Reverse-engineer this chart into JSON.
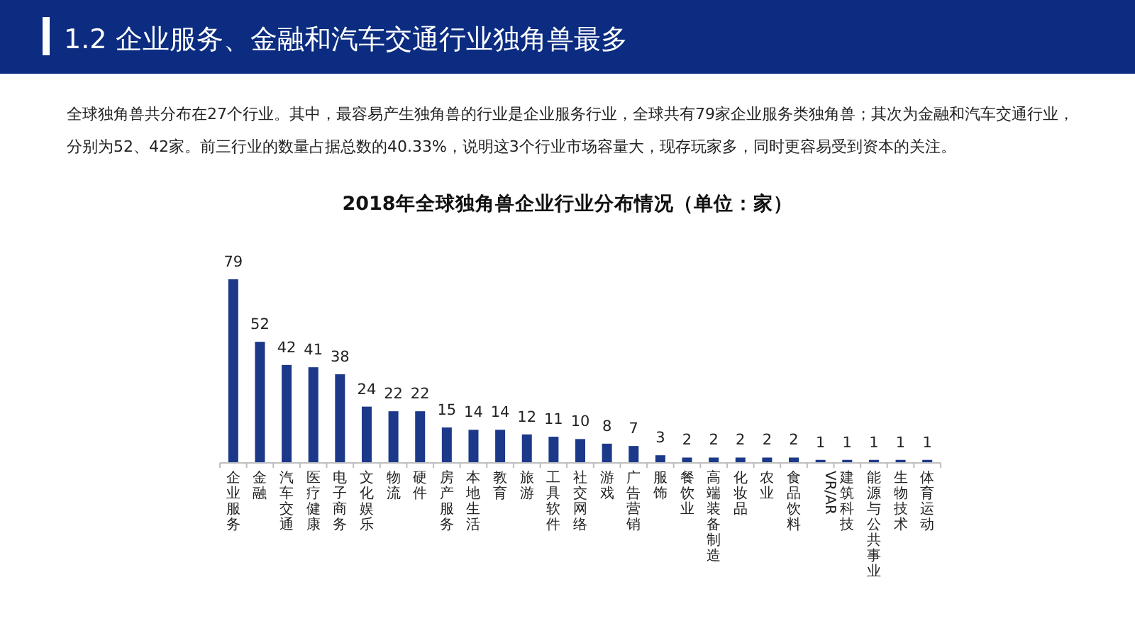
{
  "chart_data": {
    "type": "bar",
    "title": "2018年全球独角兽企业行业分布情况（单位：家）",
    "annotations": [
      "1.2 企业服务、金融和汽车交通行业独角兽最多",
      "全球独角兽共分布在27个行业。其中，最容易产生独角兽的行业是企业服务行业，全球共有79家企业服务类独角兽；其次为金融和汽车交通行业，分别为52、42家。前三行业的数量占据总数的40.33%，说明这3个行业市场容量大，现存玩家多，同时更容易受到资本的关注。"
    ],
    "categories": [
      "企业服务",
      "金融",
      "汽车交通",
      "医疗健康",
      "电子商务",
      "文化娱乐",
      "物流",
      "硬件",
      "房产服务",
      "本地生活",
      "教育",
      "旅游",
      "工具软件",
      "社交网络",
      "游戏",
      "广告营销",
      "服饰",
      "餐饮业",
      "高端装备制造",
      "化妆品",
      "农业",
      "食品饮料",
      "VR/AR",
      "建筑科技",
      "能源与公共事业",
      "生物技术",
      "体育运动"
    ],
    "values": [
      79,
      52,
      42,
      41,
      38,
      24,
      22,
      22,
      15,
      14,
      14,
      12,
      11,
      10,
      8,
      7,
      3,
      2,
      2,
      2,
      2,
      2,
      1,
      1,
      1,
      1,
      1
    ],
    "color": "#1c3889",
    "data_labels": true,
    "relative": false
  }
}
